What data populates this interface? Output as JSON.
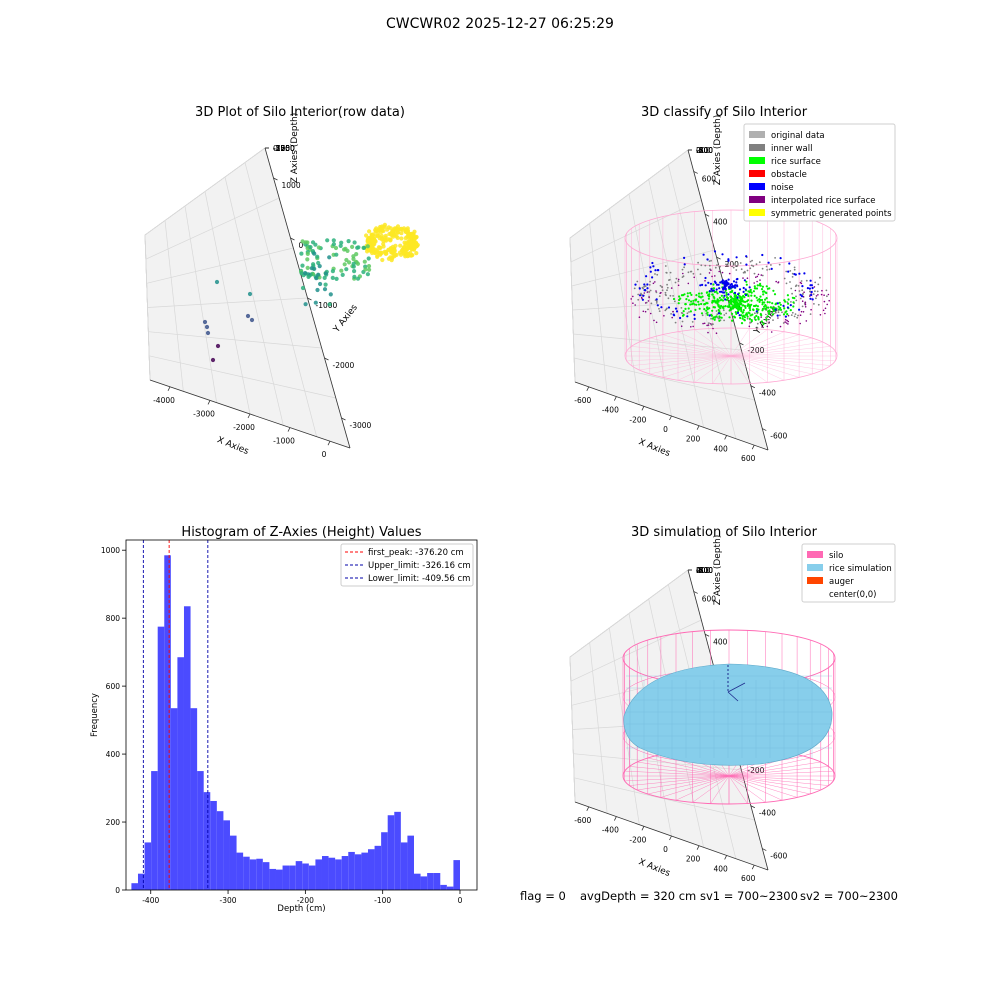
{
  "figure_title": "CWCWR02 2025-12-27 06:25:29",
  "status": {
    "flag": "flag = 0",
    "avg_depth": "avgDepth = 320 cm",
    "sv1": "sv1 = 700~2300",
    "sv2": "sv2 = 700~2300"
  },
  "chart_data": [
    {
      "type": "scatter",
      "title": "3D Plot of Silo Interior(row data)",
      "xlabel": "X Axies",
      "ylabel": "Y Axies",
      "zlabel": "Z Axies (Depth)",
      "x_ticks": [
        "-4000",
        "-3000",
        "-2000",
        "-1000",
        "0"
      ],
      "y_ticks": [
        "-3000",
        "-2000",
        "-1000",
        "0",
        "1000"
      ],
      "z_ticks": [
        "0",
        "-250",
        "-500",
        "-750",
        "-1000",
        "-1250",
        "-1500",
        "-1750"
      ],
      "colormap": "viridis"
    },
    {
      "type": "scatter",
      "title": "3D classify of Silo Interior",
      "xlabel": "X Axies",
      "ylabel": "Y Axies",
      "zlabel": "Z Axies (Depth)",
      "x_ticks": [
        "-600",
        "-400",
        "-200",
        "0",
        "200",
        "400",
        "600"
      ],
      "y_ticks": [
        "-600",
        "-400",
        "-200",
        "0",
        "200",
        "400",
        "600"
      ],
      "z_ticks": [
        "200",
        "0",
        "-200",
        "-400",
        "-600",
        "-800"
      ],
      "legend_position": "top-right",
      "legend": [
        {
          "label": "original data",
          "color": "#b0b0b0"
        },
        {
          "label": "inner wall",
          "color": "#808080"
        },
        {
          "label": "rice surface",
          "color": "#00ff00"
        },
        {
          "label": "obstacle",
          "color": "#ff0000"
        },
        {
          "label": "noise",
          "color": "#0000ff"
        },
        {
          "label": "interpolated rice surface",
          "color": "#800080"
        },
        {
          "label": "symmetric generated points",
          "color": "#ffff00"
        }
      ]
    },
    {
      "type": "bar",
      "title": "Histogram of Z-Axies (Height) Values",
      "xlabel": "Depth (cm)",
      "ylabel": "Frequency",
      "xlim": [
        -432,
        22
      ],
      "ylim": [
        0,
        1030
      ],
      "x_ticks": [
        -400,
        -300,
        -200,
        -100,
        0
      ],
      "y_ticks": [
        0,
        200,
        400,
        600,
        800,
        1000
      ],
      "bin_start": -425,
      "bin_width": 8.5,
      "bar_color": "#4b4bff",
      "values": [
        20,
        48,
        140,
        350,
        775,
        985,
        535,
        685,
        835,
        535,
        350,
        288,
        262,
        232,
        205,
        160,
        110,
        98,
        90,
        92,
        82,
        62,
        60,
        72,
        72,
        85,
        78,
        72,
        90,
        100,
        95,
        90,
        100,
        112,
        105,
        110,
        120,
        130,
        170,
        220,
        230,
        140,
        160,
        48,
        40,
        50,
        50,
        15,
        10,
        88
      ],
      "vlines": [
        {
          "label": "first_peak: -376.20 cm",
          "x": -376.2,
          "color": "#ff0000"
        },
        {
          "label": "Upper_limit: -326.16 cm",
          "x": -326.16,
          "color": "#0000aa"
        },
        {
          "label": "Lower_limit: -409.56 cm",
          "x": -409.56,
          "color": "#0000aa"
        }
      ],
      "legend_position": "top-right"
    },
    {
      "type": "surface",
      "title": "3D simulation of Silo Interior",
      "xlabel": "X Axies",
      "ylabel": "Y Axies",
      "zlabel": "Z Axies (Depth)",
      "x_ticks": [
        "-600",
        "-400",
        "-200",
        "0",
        "200",
        "400",
        "600"
      ],
      "y_ticks": [
        "-600",
        "-400",
        "-200",
        "0",
        "200",
        "400",
        "600"
      ],
      "z_ticks": [
        "400",
        "200",
        "0",
        "-200",
        "-400",
        "-600",
        "-800"
      ],
      "legend_position": "top-right",
      "legend": [
        {
          "label": "silo",
          "color": "#ff69b4"
        },
        {
          "label": "rice simulation",
          "color": "#87ceeb"
        },
        {
          "label": "auger",
          "color": "#ff4500"
        },
        {
          "label": "center(0,0)",
          "color": ""
        }
      ]
    }
  ]
}
